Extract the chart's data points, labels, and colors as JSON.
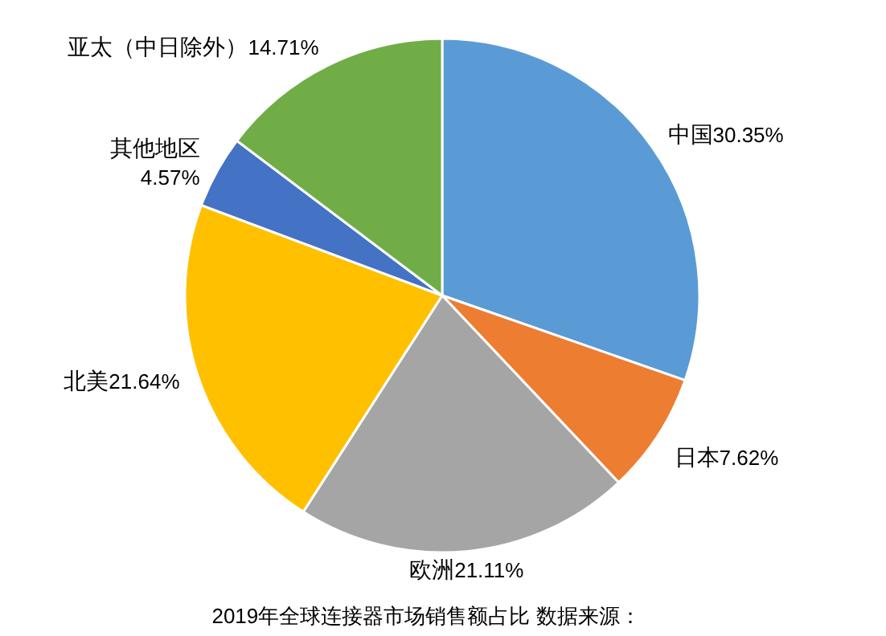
{
  "chart_data": {
    "type": "pie",
    "categories": [
      "中国",
      "日本",
      "欧洲",
      "北美",
      "其他地区",
      "亚太（中日除外）"
    ],
    "values": [
      30.35,
      7.62,
      21.11,
      21.64,
      4.57,
      14.71
    ],
    "value_labels": [
      "30.35%",
      "7.62%",
      "21.11%",
      "21.64%",
      "4.57%",
      "14.71%"
    ],
    "colors": [
      "#5b9bd5",
      "#ed7d31",
      "#a5a5a5",
      "#ffc000",
      "#4472c4",
      "#70ad47"
    ],
    "annotations": [
      "2019年全球连接器市场销售额占比 数据来源："
    ]
  }
}
